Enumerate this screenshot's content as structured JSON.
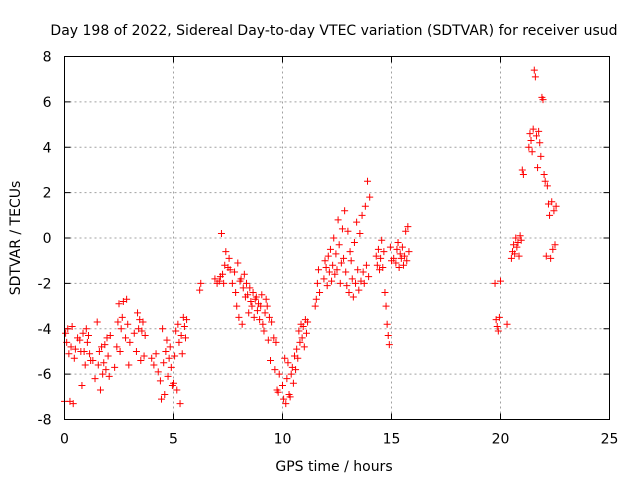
{
  "chart_data": {
    "type": "scatter",
    "title": "Day 198 of 2022, Sidereal Day-to-day VTEC variation (SDTVAR) for receiver usud",
    "xlabel": "GPS time / hours",
    "ylabel": "SDTVAR / TECUs",
    "xlim": [
      0,
      25
    ],
    "ylim": [
      -8,
      8
    ],
    "xticks": [
      0,
      5,
      10,
      15,
      20,
      25
    ],
    "yticks": [
      -8,
      -6,
      -4,
      -2,
      0,
      2,
      4,
      6,
      8
    ],
    "grid": true,
    "marker": "+",
    "color": "#ff0000",
    "series": [
      {
        "name": "usud",
        "points": [
          [
            0.0,
            -7.2
          ],
          [
            0.05,
            -4.2
          ],
          [
            0.1,
            -4.6
          ],
          [
            0.15,
            -4.0
          ],
          [
            0.2,
            -5.1
          ],
          [
            0.25,
            -7.2
          ],
          [
            0.3,
            -4.8
          ],
          [
            0.35,
            -3.9
          ],
          [
            0.4,
            -7.3
          ],
          [
            0.45,
            -5.3
          ],
          [
            0.5,
            -4.9
          ],
          [
            0.6,
            -4.4
          ],
          [
            0.7,
            -4.5
          ],
          [
            0.75,
            -5.0
          ],
          [
            0.8,
            -6.5
          ],
          [
            0.85,
            -4.2
          ],
          [
            0.9,
            -5.0
          ],
          [
            0.95,
            -5.6
          ],
          [
            1.0,
            -4.0
          ],
          [
            1.05,
            -4.6
          ],
          [
            1.1,
            -4.3
          ],
          [
            1.15,
            -5.1
          ],
          [
            1.2,
            -5.4
          ],
          [
            1.3,
            -5.4
          ],
          [
            1.4,
            -6.2
          ],
          [
            1.5,
            -3.7
          ],
          [
            1.55,
            -5.6
          ],
          [
            1.6,
            -5.0
          ],
          [
            1.65,
            -6.7
          ],
          [
            1.7,
            -4.8
          ],
          [
            1.75,
            -6.0
          ],
          [
            1.8,
            -5.5
          ],
          [
            1.85,
            -4.7
          ],
          [
            1.9,
            -5.8
          ],
          [
            1.95,
            -4.4
          ],
          [
            2.0,
            -5.2
          ],
          [
            2.05,
            -6.1
          ],
          [
            2.1,
            -4.3
          ],
          [
            2.3,
            -5.7
          ],
          [
            2.4,
            -4.8
          ],
          [
            2.45,
            -3.7
          ],
          [
            2.5,
            -2.9
          ],
          [
            2.55,
            -5.0
          ],
          [
            2.6,
            -4.0
          ],
          [
            2.65,
            -3.5
          ],
          [
            2.7,
            -2.8
          ],
          [
            2.8,
            -4.4
          ],
          [
            2.85,
            -2.7
          ],
          [
            2.9,
            -3.8
          ],
          [
            2.95,
            -5.6
          ],
          [
            3.0,
            -4.6
          ],
          [
            3.2,
            -4.2
          ],
          [
            3.3,
            -5.0
          ],
          [
            3.35,
            -3.3
          ],
          [
            3.4,
            -4.0
          ],
          [
            3.45,
            -3.6
          ],
          [
            3.5,
            -5.4
          ],
          [
            3.55,
            -4.1
          ],
          [
            3.6,
            -3.7
          ],
          [
            3.65,
            -5.2
          ],
          [
            3.7,
            -4.3
          ],
          [
            4.0,
            -5.3
          ],
          [
            4.1,
            -5.6
          ],
          [
            4.2,
            -5.1
          ],
          [
            4.3,
            -5.9
          ],
          [
            4.4,
            -6.3
          ],
          [
            4.45,
            -7.1
          ],
          [
            4.5,
            -4.0
          ],
          [
            4.55,
            -5.5
          ],
          [
            4.6,
            -6.9
          ],
          [
            4.65,
            -5.0
          ],
          [
            4.7,
            -4.5
          ],
          [
            4.75,
            -6.1
          ],
          [
            4.8,
            -5.3
          ],
          [
            4.85,
            -4.8
          ],
          [
            4.9,
            -5.7
          ],
          [
            4.95,
            -6.5
          ],
          [
            5.0,
            -6.4
          ],
          [
            5.05,
            -5.2
          ],
          [
            5.1,
            -4.1
          ],
          [
            5.15,
            -6.7
          ],
          [
            5.2,
            -3.8
          ],
          [
            5.25,
            -4.6
          ],
          [
            5.3,
            -7.3
          ],
          [
            5.35,
            -4.3
          ],
          [
            5.4,
            -5.1
          ],
          [
            5.45,
            -3.5
          ],
          [
            5.5,
            -3.9
          ],
          [
            5.55,
            -4.4
          ],
          [
            5.6,
            -3.6
          ],
          [
            6.2,
            -2.3
          ],
          [
            6.25,
            -2.0
          ],
          [
            6.9,
            -1.8
          ],
          [
            7.0,
            -2.0
          ],
          [
            7.1,
            -1.9
          ],
          [
            7.15,
            -1.7
          ],
          [
            7.2,
            0.2
          ],
          [
            7.25,
            -1.6
          ],
          [
            7.3,
            -2.0
          ],
          [
            7.35,
            -1.2
          ],
          [
            7.4,
            -0.6
          ],
          [
            7.5,
            -1.3
          ],
          [
            7.55,
            -0.9
          ],
          [
            7.6,
            -1.4
          ],
          [
            7.7,
            -2.0
          ],
          [
            7.8,
            -1.5
          ],
          [
            7.85,
            -2.4
          ],
          [
            7.9,
            -3.0
          ],
          [
            7.95,
            -1.1
          ],
          [
            8.0,
            -3.5
          ],
          [
            8.05,
            -1.9
          ],
          [
            8.1,
            -1.8
          ],
          [
            8.15,
            -3.8
          ],
          [
            8.2,
            -2.2
          ],
          [
            8.25,
            -1.6
          ],
          [
            8.3,
            -2.6
          ],
          [
            8.35,
            -2.0
          ],
          [
            8.4,
            -2.5
          ],
          [
            8.45,
            -3.3
          ],
          [
            8.5,
            -2.2
          ],
          [
            8.55,
            -2.8
          ],
          [
            8.6,
            -3.0
          ],
          [
            8.65,
            -2.4
          ],
          [
            8.7,
            -3.5
          ],
          [
            8.75,
            -2.7
          ],
          [
            8.8,
            -2.6
          ],
          [
            8.85,
            -3.2
          ],
          [
            8.9,
            -2.9
          ],
          [
            8.95,
            -3.6
          ],
          [
            9.0,
            -3.0
          ],
          [
            9.05,
            -2.5
          ],
          [
            9.1,
            -3.8
          ],
          [
            9.15,
            -4.1
          ],
          [
            9.2,
            -3.3
          ],
          [
            9.25,
            -2.7
          ],
          [
            9.3,
            -3.0
          ],
          [
            9.35,
            -4.5
          ],
          [
            9.4,
            -3.5
          ],
          [
            9.45,
            -5.4
          ],
          [
            9.5,
            -3.7
          ],
          [
            9.6,
            -4.4
          ],
          [
            9.65,
            -5.8
          ],
          [
            9.7,
            -4.6
          ],
          [
            9.75,
            -6.7
          ],
          [
            9.8,
            -6.8
          ],
          [
            9.85,
            -6.0
          ],
          [
            10.0,
            -6.5
          ],
          [
            10.05,
            -7.1
          ],
          [
            10.1,
            -5.3
          ],
          [
            10.15,
            -7.3
          ],
          [
            10.2,
            -6.2
          ],
          [
            10.25,
            -5.5
          ],
          [
            10.3,
            -6.9
          ],
          [
            10.35,
            -7.0
          ],
          [
            10.4,
            -6.0
          ],
          [
            10.45,
            -5.7
          ],
          [
            10.5,
            -6.4
          ],
          [
            10.55,
            -5.2
          ],
          [
            10.6,
            -5.8
          ],
          [
            10.65,
            -4.9
          ],
          [
            10.7,
            -5.3
          ],
          [
            10.75,
            -4.1
          ],
          [
            10.8,
            -4.6
          ],
          [
            10.85,
            -3.8
          ],
          [
            10.9,
            -4.4
          ],
          [
            10.95,
            -3.9
          ],
          [
            11.0,
            -4.8
          ],
          [
            11.05,
            -3.6
          ],
          [
            11.1,
            -4.2
          ],
          [
            11.15,
            -3.7
          ],
          [
            11.5,
            -3.0
          ],
          [
            11.55,
            -2.7
          ],
          [
            11.6,
            -2.0
          ],
          [
            11.65,
            -1.4
          ],
          [
            11.7,
            -2.4
          ],
          [
            11.9,
            -1.8
          ],
          [
            11.95,
            -1.0
          ],
          [
            12.0,
            -1.3
          ],
          [
            12.05,
            -2.1
          ],
          [
            12.1,
            -0.8
          ],
          [
            12.15,
            -1.5
          ],
          [
            12.2,
            -0.5
          ],
          [
            12.25,
            -1.9
          ],
          [
            12.3,
            -1.2
          ],
          [
            12.35,
            0.0
          ],
          [
            12.4,
            -1.6
          ],
          [
            12.45,
            -0.7
          ],
          [
            12.5,
            -1.4
          ],
          [
            12.55,
            0.8
          ],
          [
            12.6,
            -0.3
          ],
          [
            12.65,
            -2.0
          ],
          [
            12.7,
            -1.1
          ],
          [
            12.75,
            0.4
          ],
          [
            12.8,
            -0.9
          ],
          [
            12.85,
            1.2
          ],
          [
            12.9,
            -1.5
          ],
          [
            12.95,
            -2.1
          ],
          [
            13.0,
            0.3
          ],
          [
            13.05,
            -2.4
          ],
          [
            13.1,
            -0.6
          ],
          [
            13.15,
            -1.0
          ],
          [
            13.2,
            -1.8
          ],
          [
            13.25,
            -2.6
          ],
          [
            13.3,
            -0.2
          ],
          [
            13.35,
            -2.0
          ],
          [
            13.4,
            0.7
          ],
          [
            13.45,
            -1.4
          ],
          [
            13.5,
            -2.3
          ],
          [
            13.55,
            0.2
          ],
          [
            13.6,
            -1.9
          ],
          [
            13.65,
            1.0
          ],
          [
            13.7,
            -1.5
          ],
          [
            13.75,
            -2.0
          ],
          [
            13.8,
            1.4
          ],
          [
            13.85,
            -1.2
          ],
          [
            13.9,
            2.5
          ],
          [
            13.95,
            -1.7
          ],
          [
            14.0,
            1.8
          ],
          [
            14.3,
            -0.8
          ],
          [
            14.35,
            -1.2
          ],
          [
            14.4,
            -0.5
          ],
          [
            14.45,
            -1.4
          ],
          [
            14.5,
            -0.9
          ],
          [
            14.55,
            -0.1
          ],
          [
            14.6,
            -1.3
          ],
          [
            14.65,
            -0.6
          ],
          [
            14.7,
            -2.4
          ],
          [
            14.75,
            -3.0
          ],
          [
            14.8,
            -3.8
          ],
          [
            14.85,
            -4.3
          ],
          [
            14.9,
            -4.7
          ],
          [
            14.95,
            -0.4
          ],
          [
            15.0,
            -1.0
          ],
          [
            15.1,
            -0.9
          ],
          [
            15.2,
            -1.1
          ],
          [
            15.25,
            -0.5
          ],
          [
            15.3,
            -0.2
          ],
          [
            15.35,
            -1.3
          ],
          [
            15.4,
            -0.7
          ],
          [
            15.45,
            -0.9
          ],
          [
            15.5,
            -0.4
          ],
          [
            15.55,
            -1.2
          ],
          [
            15.6,
            -0.8
          ],
          [
            15.65,
            0.3
          ],
          [
            15.7,
            -1.0
          ],
          [
            15.75,
            0.5
          ],
          [
            15.8,
            -0.6
          ],
          [
            19.75,
            -2.0
          ],
          [
            19.8,
            -3.6
          ],
          [
            19.85,
            -3.9
          ],
          [
            19.9,
            -4.1
          ],
          [
            19.95,
            -3.5
          ],
          [
            20.0,
            -1.9
          ],
          [
            20.3,
            -3.8
          ],
          [
            20.5,
            -0.9
          ],
          [
            20.55,
            -0.6
          ],
          [
            20.6,
            -0.3
          ],
          [
            20.65,
            -0.7
          ],
          [
            20.7,
            0.0
          ],
          [
            20.75,
            -0.4
          ],
          [
            20.8,
            -0.2
          ],
          [
            20.85,
            -0.8
          ],
          [
            20.9,
            0.1
          ],
          [
            20.95,
            -0.1
          ],
          [
            21.0,
            3.0
          ],
          [
            21.05,
            2.8
          ],
          [
            21.3,
            4.0
          ],
          [
            21.35,
            4.6
          ],
          [
            21.4,
            4.3
          ],
          [
            21.45,
            3.8
          ],
          [
            21.5,
            4.8
          ],
          [
            21.55,
            7.4
          ],
          [
            21.6,
            7.1
          ],
          [
            21.65,
            4.5
          ],
          [
            21.7,
            3.1
          ],
          [
            21.75,
            4.7
          ],
          [
            21.8,
            4.2
          ],
          [
            21.85,
            3.6
          ],
          [
            21.9,
            6.2
          ],
          [
            21.95,
            6.1
          ],
          [
            22.0,
            2.8
          ],
          [
            22.05,
            2.5
          ],
          [
            22.1,
            -0.8
          ],
          [
            22.15,
            2.3
          ],
          [
            22.2,
            1.5
          ],
          [
            22.25,
            1.0
          ],
          [
            22.3,
            -0.9
          ],
          [
            22.35,
            1.6
          ],
          [
            22.4,
            -0.5
          ],
          [
            22.45,
            1.2
          ],
          [
            22.5,
            -0.3
          ],
          [
            22.55,
            1.4
          ]
        ]
      }
    ]
  }
}
